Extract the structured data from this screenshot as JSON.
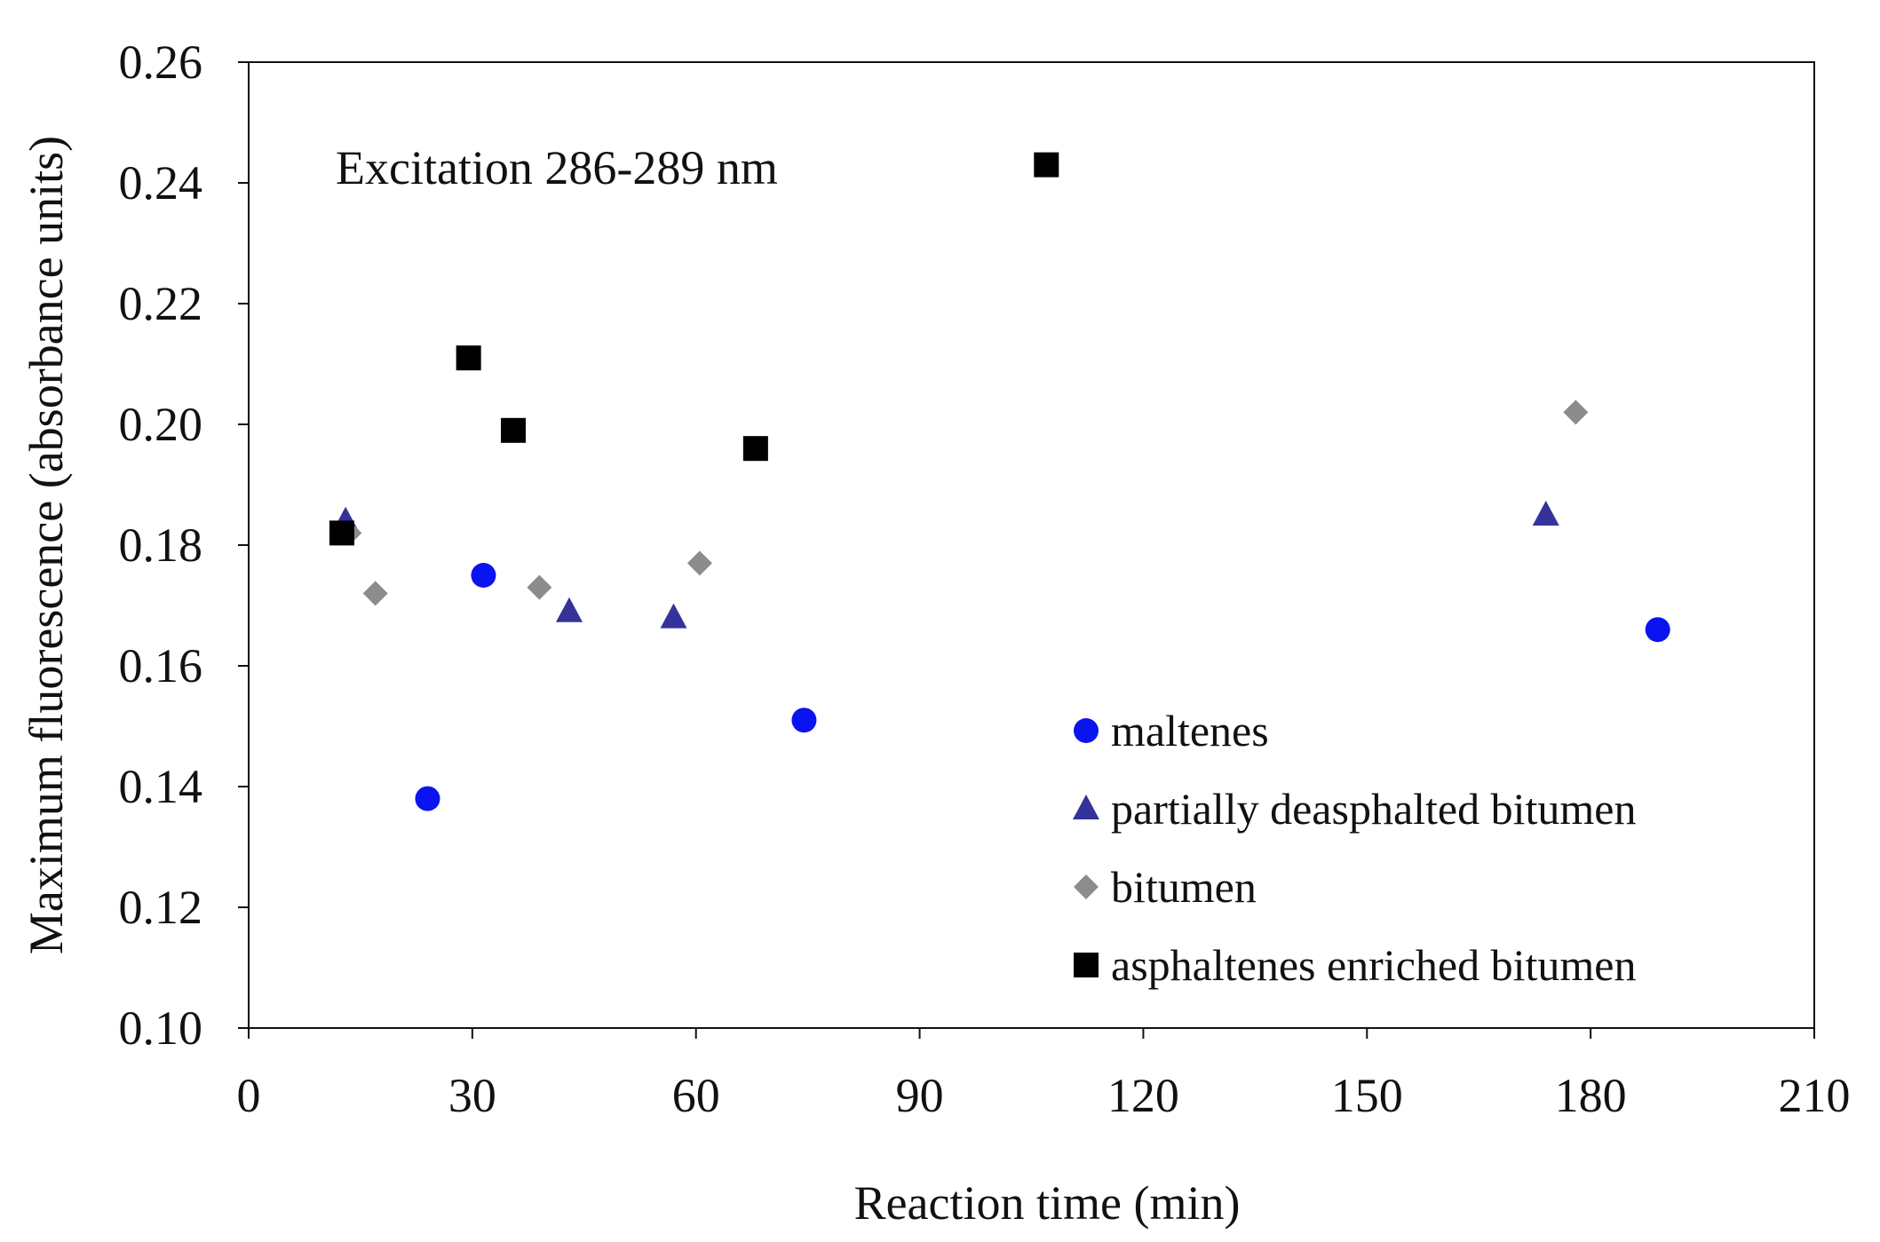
{
  "chart_data": {
    "type": "scatter",
    "title": "",
    "annotation": "Excitation 286-289 nm",
    "xlabel": "Reaction time (min)",
    "ylabel": "Maximum fluorescence (absorbance units)",
    "xlim": [
      0,
      210
    ],
    "ylim": [
      0.1,
      0.26
    ],
    "x_ticks": [
      0,
      30,
      60,
      90,
      120,
      150,
      180,
      210
    ],
    "x_tick_labels": [
      "0",
      "30",
      "60",
      "90",
      "120",
      "150",
      "180",
      "210"
    ],
    "y_ticks": [
      0.1,
      0.12,
      0.14,
      0.16,
      0.18,
      0.2,
      0.22,
      0.24,
      0.26
    ],
    "y_tick_labels": [
      "0.10",
      "0.12",
      "0.14",
      "0.16",
      "0.18",
      "0.20",
      "0.22",
      "0.24",
      "0.26"
    ],
    "grid": false,
    "legend_position": "lower-right",
    "series": [
      {
        "name": "maltenes",
        "marker": "circle",
        "color": "#0a14f0",
        "points": [
          [
            24,
            0.138
          ],
          [
            31.5,
            0.175
          ],
          [
            74.5,
            0.151
          ],
          [
            189,
            0.166
          ]
        ]
      },
      {
        "name": "partially deasphalted bitumen",
        "marker": "triangle",
        "color": "#33339a",
        "points": [
          [
            13,
            0.184
          ],
          [
            43,
            0.169
          ],
          [
            57,
            0.168
          ],
          [
            174,
            0.185
          ]
        ]
      },
      {
        "name": "bitumen",
        "marker": "diamond",
        "color": "#8c8c8c",
        "points": [
          [
            13.5,
            0.182
          ],
          [
            17,
            0.172
          ],
          [
            39,
            0.173
          ],
          [
            60.5,
            0.177
          ],
          [
            178,
            0.202
          ]
        ]
      },
      {
        "name": "asphaltenes enriched bitumen",
        "marker": "square",
        "color": "#000000",
        "points": [
          [
            12.5,
            0.182
          ],
          [
            29.5,
            0.211
          ],
          [
            35.5,
            0.199
          ],
          [
            68,
            0.196
          ],
          [
            107,
            0.243
          ]
        ]
      }
    ]
  }
}
